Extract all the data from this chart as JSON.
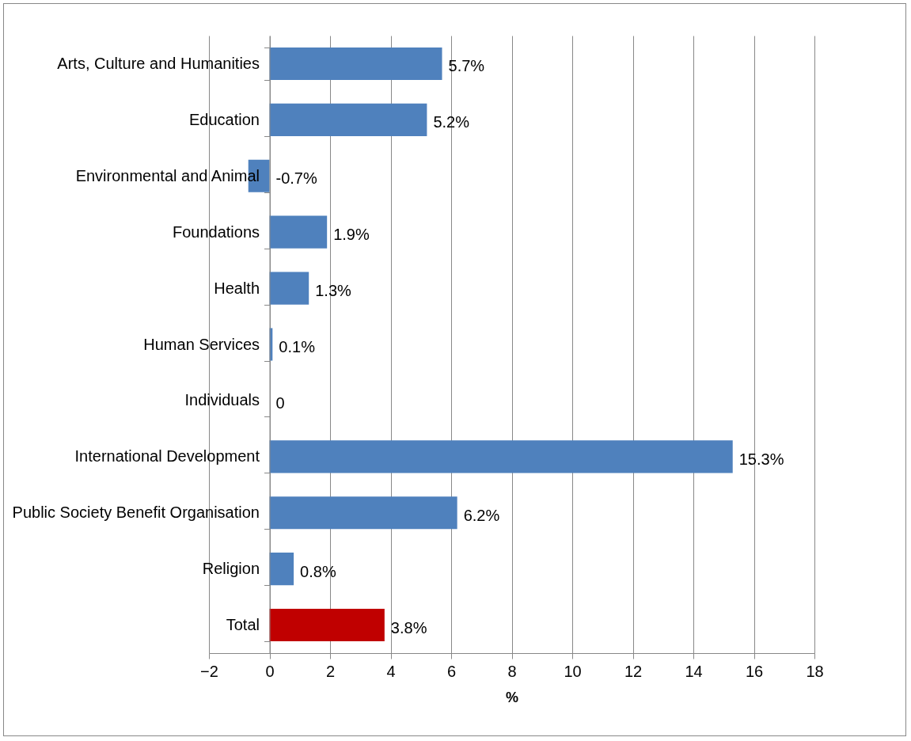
{
  "chart_data": {
    "type": "bar",
    "orientation": "horizontal",
    "xlabel": "%",
    "categories": [
      "Arts, Culture and Humanities",
      "Education",
      "Environmental and Animal",
      "Foundations",
      "Health",
      "Human Services",
      "Individuals",
      "International Development",
      "Public Society Benefit Organisation",
      "Religion",
      "Total"
    ],
    "values": [
      5.7,
      5.2,
      -0.7,
      1.9,
      1.3,
      0.1,
      0,
      15.3,
      6.2,
      0.8,
      3.8
    ],
    "colors": [
      "#4f81bd",
      "#4f81bd",
      "#4f81bd",
      "#4f81bd",
      "#4f81bd",
      "#4f81bd",
      "#4f81bd",
      "#4f81bd",
      "#4f81bd",
      "#4f81bd",
      "#c00000"
    ],
    "value_labels": [
      "5.7%",
      "5.2%",
      "-0.7%",
      "1.9%",
      "1.3%",
      "0.1%",
      "0",
      "15.3%",
      "6.2%",
      "0.8%",
      "3.8%"
    ],
    "xlim": [
      -2,
      18
    ],
    "xticks": [
      -2,
      0,
      2,
      4,
      6,
      8,
      10,
      12,
      14,
      16,
      18
    ],
    "grid": "x",
    "legend": false
  }
}
